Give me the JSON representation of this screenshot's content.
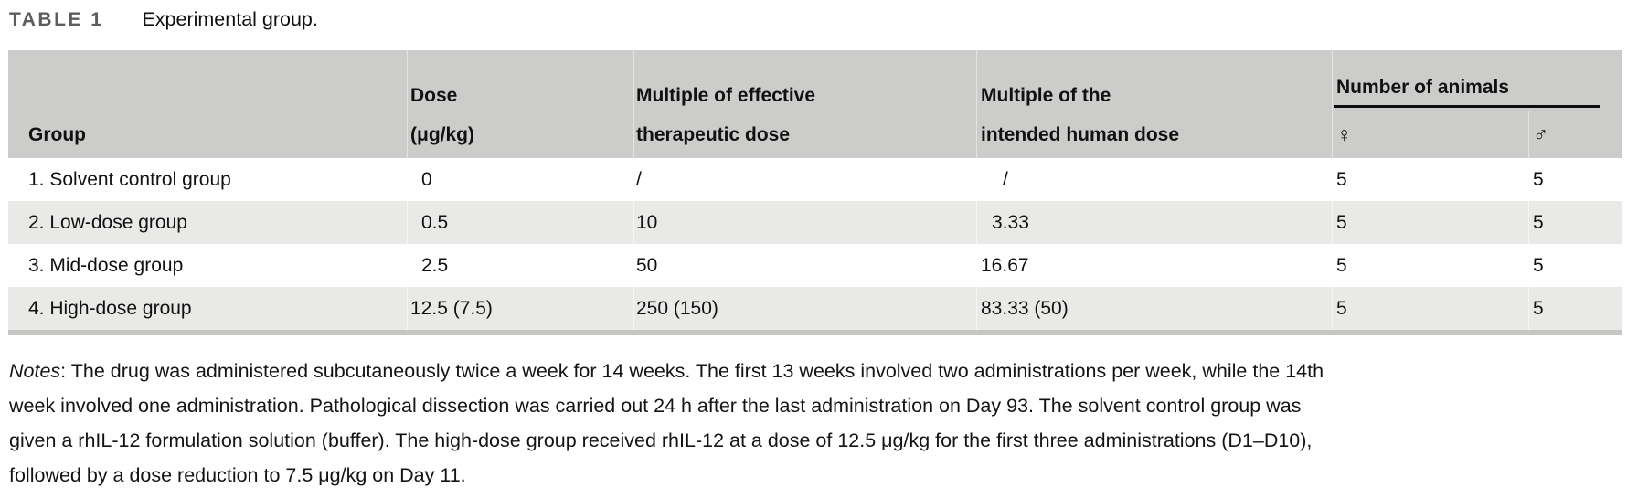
{
  "title": {
    "label": "TABLE 1",
    "caption": "Experimental group."
  },
  "table": {
    "columns": [
      {
        "id": "group",
        "header_top": "",
        "header_bottom": "Group",
        "align": "left"
      },
      {
        "id": "dose",
        "header_top": "Dose",
        "header_bottom": "(μg/kg)",
        "align": "decimal"
      },
      {
        "id": "multiple-effective",
        "header_top": "Multiple of effective",
        "header_bottom": "therapeutic dose",
        "align": "left"
      },
      {
        "id": "multiple-human",
        "header_top": "Multiple of the",
        "header_bottom": "intended human dose",
        "align": "decimal"
      },
      {
        "id": "females",
        "header_top": "",
        "header_bottom": "♀",
        "align": "left"
      },
      {
        "id": "males",
        "header_top": "",
        "header_bottom": "♂",
        "align": "left"
      }
    ],
    "group_header": {
      "label": "Number of animals",
      "spans": [
        "females",
        "males"
      ]
    },
    "rows": [
      [
        "1. Solvent control group",
        "0",
        "/",
        "/",
        "5",
        "5"
      ],
      [
        "2. Low-dose group",
        "0.5",
        "10",
        "3.33",
        "5",
        "5"
      ],
      [
        "3. Mid-dose group",
        "2.5",
        "50",
        "16.67",
        "5",
        "5"
      ],
      [
        "4. High-dose group",
        "12.5 (7.5)",
        "250 (150)",
        "83.33 (50)",
        "5",
        "5"
      ]
    ]
  },
  "notes": {
    "label": "Notes",
    "lines": [
      ": The drug was administered subcutaneously twice a week for 14 weeks. The first 13 weeks involved two administrations per week, while the 14th",
      "week involved one administration. Pathological dissection was carried out 24 h after the last administration on Day 93. The solvent control group was",
      "given a rhIL-12 formulation solution (buffer). The high-dose group received rhIL-12 at a dose of 12.5 μg/kg for the first three administrations (D1–D10),",
      "followed by a dose reduction to 7.5 μg/kg on Day 11."
    ]
  },
  "colors": {
    "header_bg": "#cccccb",
    "stripe_bg": "#e9e9e7",
    "bottom_strip": "#c6c6c4",
    "rule": "#0e0e0e",
    "title_label": "#5c5c5c",
    "text": "#111111"
  }
}
